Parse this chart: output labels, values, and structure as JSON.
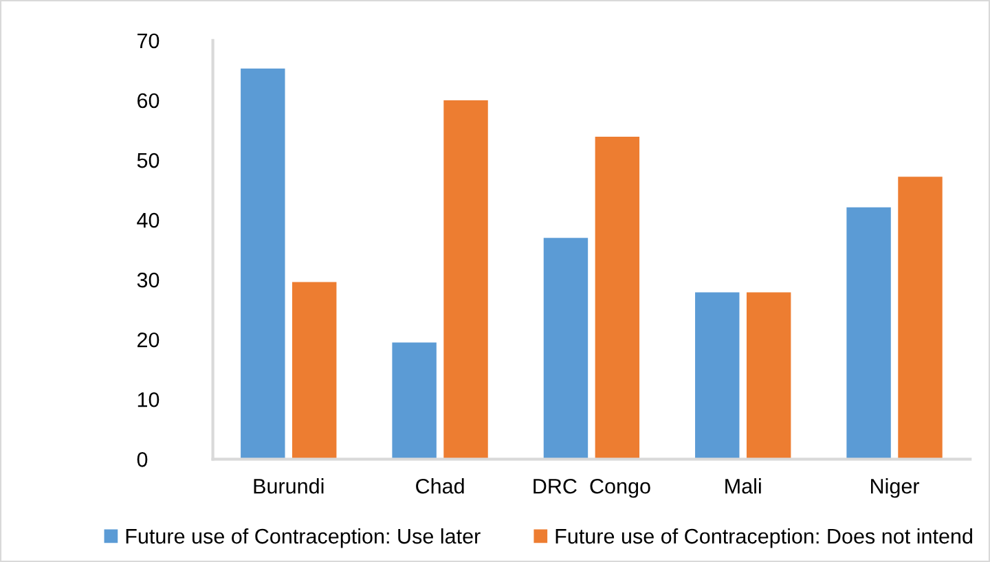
{
  "chart_data": {
    "type": "bar",
    "categories": [
      "Burundi",
      "Chad",
      "DRC  Congo",
      "Mali",
      "Niger"
    ],
    "series": [
      {
        "name": "Future use of Contraception: Use later",
        "color": "#5b9bd5",
        "values": [
          65.4,
          19.6,
          37.1,
          28.0,
          42.2
        ]
      },
      {
        "name": "Future use of Contraception: Does not intend",
        "color": "#ed7d31",
        "values": [
          29.7,
          60.1,
          54.0,
          28.0,
          47.3
        ]
      }
    ],
    "ylim": [
      0,
      70
    ],
    "yticks": [
      0,
      10,
      20,
      30,
      40,
      50,
      60,
      70
    ],
    "grid": false,
    "legend": "bottom"
  }
}
